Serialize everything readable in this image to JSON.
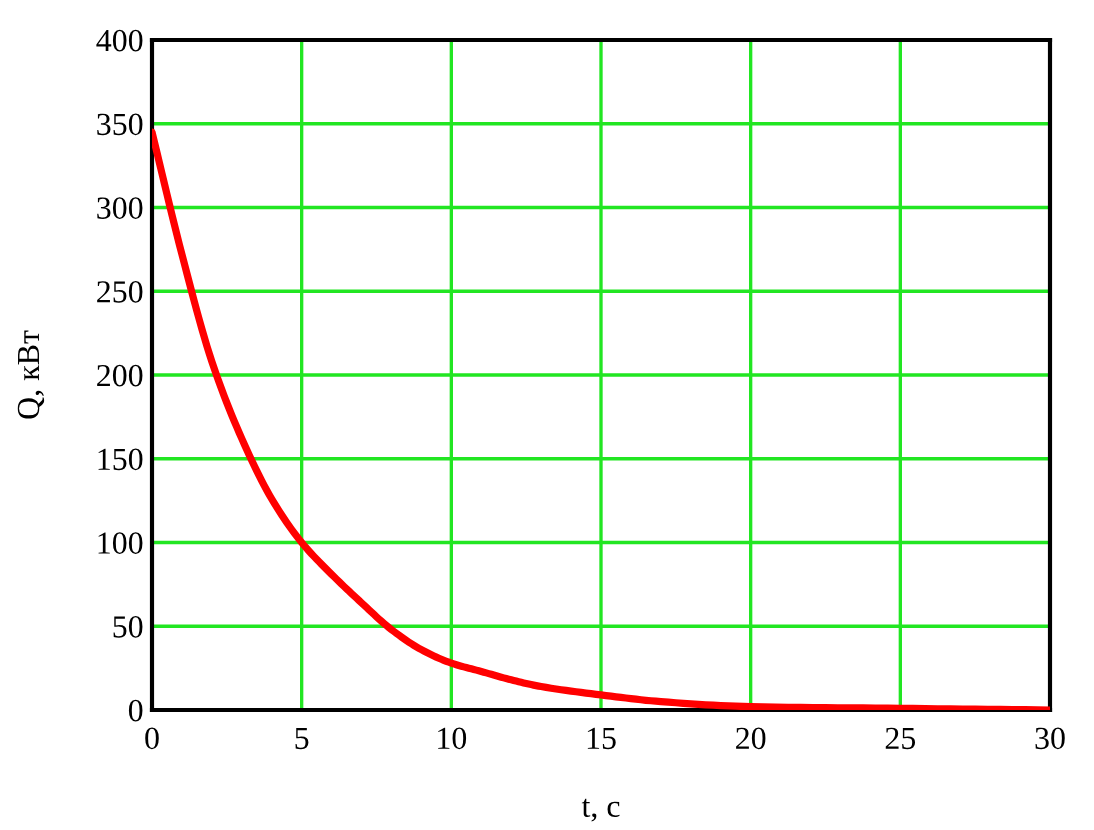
{
  "chart_data": {
    "type": "line",
    "xlabel": "t, c",
    "ylabel": "Q, кВт",
    "x": [
      0,
      1,
      2,
      3,
      4,
      5,
      6,
      7,
      8,
      9,
      10,
      11,
      12,
      13,
      15,
      17,
      20,
      25,
      30
    ],
    "series": [
      {
        "color": "#ff0000",
        "values": [
          345,
          272,
          208,
          162,
          126,
          100,
          81,
          64,
          48,
          36,
          28,
          23,
          18,
          14,
          9,
          5,
          2,
          1,
          0
        ]
      }
    ],
    "xlim": [
      0,
      30
    ],
    "xticks": [
      0,
      5,
      10,
      15,
      20,
      25,
      30
    ],
    "ylim": [
      0,
      400
    ],
    "yticks": [
      0,
      50,
      100,
      150,
      200,
      250,
      300,
      350,
      400
    ],
    "grid": true,
    "marker": "none",
    "line_style": "solid"
  }
}
